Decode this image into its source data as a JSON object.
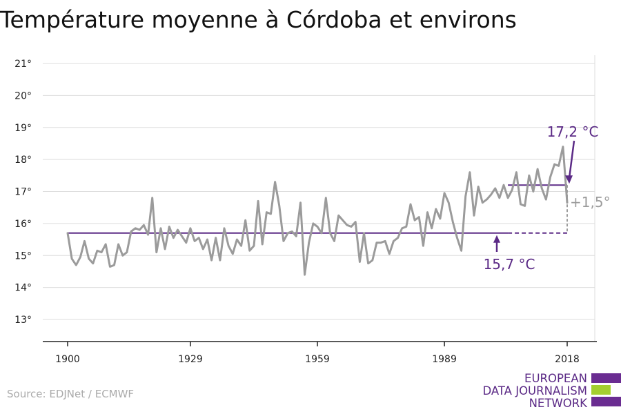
{
  "colors": {
    "series": "#9b9b9b",
    "reference": "#5b2a86",
    "logo_purple": "#6a2c91",
    "logo_green": "#a4cf2f",
    "source_text": "#aaaaaa"
  },
  "chart_data": {
    "type": "line",
    "title": "Température moyenne à Córdoba et environs",
    "xlabel": "",
    "ylabel": "",
    "xlim": [
      1900,
      2018
    ],
    "ylim": [
      13,
      21
    ],
    "x_ticks": [
      "1900",
      "1929",
      "1959",
      "1989",
      "2018"
    ],
    "y_ticks": [
      "13°",
      "14°",
      "15°",
      "16°",
      "17°",
      "18°",
      "19°",
      "20°",
      "21°"
    ],
    "grid": true,
    "series": [
      {
        "years": [
          1900,
          1901,
          1902,
          1903,
          1904,
          1905,
          1906,
          1907,
          1908,
          1909,
          1910,
          1911,
          1912,
          1913,
          1914,
          1915,
          1916,
          1917,
          1918,
          1919,
          1920,
          1921,
          1922,
          1923,
          1924,
          1925,
          1926,
          1927,
          1928,
          1929,
          1930,
          1931,
          1932,
          1933,
          1934,
          1935,
          1936,
          1937,
          1938,
          1939,
          1940,
          1941,
          1942,
          1943,
          1944,
          1945,
          1946,
          1947,
          1948,
          1949,
          1950,
          1951,
          1952,
          1953,
          1954,
          1955,
          1956,
          1957,
          1958,
          1959,
          1960,
          1961,
          1962,
          1963,
          1964,
          1965,
          1966,
          1967,
          1968,
          1969,
          1970,
          1971,
          1972,
          1973,
          1974,
          1975,
          1976,
          1977,
          1978,
          1979,
          1980,
          1981,
          1982,
          1983,
          1984,
          1985,
          1986,
          1987,
          1988,
          1989,
          1990,
          1991,
          1992,
          1993,
          1994,
          1995,
          1996,
          1997,
          1998,
          1999,
          2000,
          2001,
          2002,
          2003,
          2004,
          2005,
          2006,
          2007,
          2008,
          2009,
          2010,
          2011,
          2012,
          2013,
          2014,
          2015,
          2016,
          2017,
          2018
        ],
        "values": [
          15.7,
          14.9,
          14.7,
          14.95,
          15.45,
          14.9,
          14.75,
          15.15,
          15.1,
          15.35,
          14.65,
          14.7,
          15.35,
          15.0,
          15.1,
          15.75,
          15.85,
          15.8,
          15.95,
          15.65,
          16.8,
          15.1,
          15.85,
          15.2,
          15.9,
          15.55,
          15.8,
          15.6,
          15.4,
          15.85,
          15.45,
          15.55,
          15.2,
          15.5,
          14.85,
          15.55,
          14.85,
          15.85,
          15.3,
          15.05,
          15.5,
          15.3,
          16.1,
          15.15,
          15.3,
          16.7,
          15.35,
          16.35,
          16.3,
          17.3,
          16.55,
          15.45,
          15.7,
          15.75,
          15.6,
          16.65,
          14.4,
          15.4,
          16.0,
          15.9,
          15.7,
          16.8,
          15.7,
          15.45,
          16.25,
          16.1,
          15.95,
          15.9,
          16.05,
          14.8,
          15.7,
          14.75,
          14.85,
          15.4,
          15.4,
          15.45,
          15.05,
          15.45,
          15.55,
          15.85,
          15.9,
          16.6,
          16.1,
          16.2,
          15.3,
          16.35,
          15.85,
          16.45,
          16.15,
          16.95,
          16.65,
          16.05,
          15.55,
          15.15,
          16.85,
          17.6,
          16.25,
          17.15,
          16.65,
          16.75,
          16.9,
          17.1,
          16.8,
          17.2,
          16.8,
          17.05,
          17.6,
          16.6,
          16.55,
          17.5,
          17.0,
          17.7,
          17.1,
          16.75,
          17.45,
          17.85,
          17.8,
          18.4,
          16.65
        ]
      }
    ],
    "reference_lines": [
      {
        "value": 15.7,
        "from": 1900,
        "to": 2018,
        "label": "15,7 °C"
      },
      {
        "value": 17.2,
        "from": 2004,
        "to": 2018,
        "label": "17,2 °C"
      }
    ],
    "difference_label": "+1,5°"
  },
  "source": {
    "text": "Source: EDJNet / ECMWF"
  },
  "logo": {
    "line1": "EUROPEAN",
    "line2": "DATA JOURNALISM",
    "line3": "NETWORK"
  }
}
